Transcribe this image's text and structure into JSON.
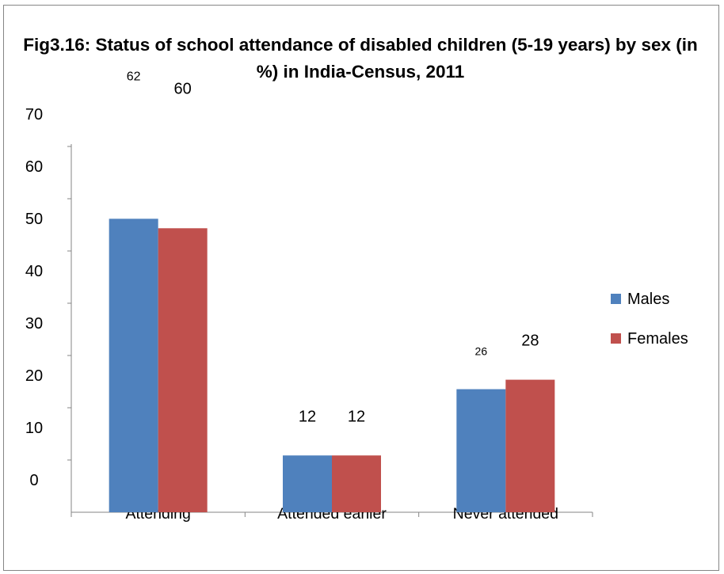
{
  "chart_data": {
    "type": "bar",
    "title": "Fig3.16: Status of school attendance of disabled children (5-19 years) by sex (in %) in India-Census, 2011",
    "xlabel": "",
    "ylabel": "",
    "categories": [
      "Attending",
      "Attended earlier",
      "Never attended"
    ],
    "series": [
      {
        "name": "Males",
        "values": [
          62,
          12,
          26
        ],
        "color": "#4f81bd"
      },
      {
        "name": "Females",
        "values": [
          60,
          12,
          28
        ],
        "color": "#c0504d"
      }
    ],
    "data_labels": {
      "Males": [
        "62",
        "12",
        "26"
      ],
      "Females": [
        "60",
        "12",
        "28"
      ]
    },
    "y_tick_labels": [
      "0",
      "10",
      "20",
      "30",
      "40",
      "50",
      "60",
      "70"
    ],
    "ylim": [
      0,
      70
    ],
    "grid": false,
    "legend_position": "right"
  }
}
